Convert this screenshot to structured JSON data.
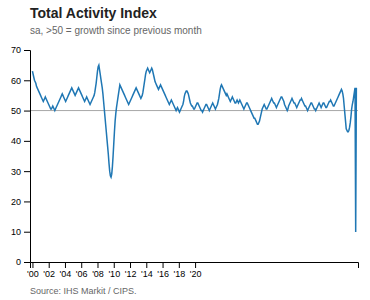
{
  "chart_data": {
    "type": "line",
    "title": "Total Activity Index",
    "subtitle": "sa, >50 = growth since previous month",
    "source": "Source: IHS Markit / CIPS.",
    "reference_line_y": 50,
    "grid": false,
    "xlim": [
      1999.7,
      2040.0333333333333
    ],
    "xticks": [
      {
        "value": 2000,
        "label": "'00"
      },
      {
        "value": 2002,
        "label": "'02"
      },
      {
        "value": 2004,
        "label": "'04"
      },
      {
        "value": 2006,
        "label": "'06"
      },
      {
        "value": 2008,
        "label": "'08"
      },
      {
        "value": 2010,
        "label": "'10"
      },
      {
        "value": 2012,
        "label": "'12"
      },
      {
        "value": 2014,
        "label": "'14"
      },
      {
        "value": 2016,
        "label": "'16"
      },
      {
        "value": 2018,
        "label": "'18"
      },
      {
        "value": 2020,
        "label": "'20"
      }
    ],
    "ylim": [
      0,
      70
    ],
    "yticks": [
      0,
      10,
      20,
      30,
      40,
      50,
      60,
      70
    ],
    "x": [
      2000,
      2000.0833333333333,
      2000.1666666666667,
      2000.25,
      2000.3333333333333,
      2000.4166666666667,
      2000.5,
      2000.5833333333333,
      2000.6666666666667,
      2000.75,
      2000.8333333333333,
      2000.9166666666667,
      2001,
      2001.0833333333333,
      2001.1666666666667,
      2001.25,
      2001.3333333333333,
      2001.4166666666667,
      2001.5,
      2001.5833333333333,
      2001.6666666666667,
      2001.75,
      2001.8333333333333,
      2001.9166666666667,
      2002,
      2002.0833333333333,
      2002.1666666666667,
      2002.25,
      2002.3333333333333,
      2002.4166666666667,
      2002.5,
      2002.5833333333333,
      2002.6666666666667,
      2002.75,
      2002.8333333333333,
      2002.9166666666667,
      2003,
      2003.0833333333333,
      2003.1666666666667,
      2003.25,
      2003.3333333333333,
      2003.4166666666667,
      2003.5,
      2003.5833333333333,
      2003.6666666666667,
      2003.75,
      2003.8333333333333,
      2003.9166666666667,
      2004,
      2004.0833333333333,
      2004.1666666666667,
      2004.25,
      2004.3333333333333,
      2004.4166666666667,
      2004.5,
      2004.5833333333333,
      2004.6666666666667,
      2004.75,
      2004.8333333333333,
      2004.9166666666667,
      2005,
      2005.0833333333333,
      2005.1666666666667,
      2005.25,
      2005.3333333333333,
      2005.4166666666667,
      2005.5,
      2005.5833333333333,
      2005.6666666666667,
      2005.75,
      2005.8333333333333,
      2005.9166666666667,
      2006,
      2006.0833333333333,
      2006.1666666666667,
      2006.25,
      2006.3333333333333,
      2006.4166666666667,
      2006.5,
      2006.5833333333333,
      2006.6666666666667,
      2006.75,
      2006.8333333333333,
      2006.9166666666667,
      2007,
      2007.0833333333333,
      2007.1666666666667,
      2007.25,
      2007.3333333333333,
      2007.4166666666667,
      2007.5,
      2007.5833333333333,
      2007.6666666666667,
      2007.75,
      2007.8333333333333,
      2007.9166666666667,
      2008,
      2008.0833333333333,
      2008.1666666666667,
      2008.25,
      2008.3333333333333,
      2008.4166666666667,
      2008.5,
      2008.5833333333333,
      2008.6666666666667,
      2008.75,
      2008.8333333333333,
      2008.9166666666667,
      2009,
      2009.0833333333333,
      2009.1666666666667,
      2009.25,
      2009.3333333333333,
      2009.4166666666667,
      2009.5,
      2009.5833333333333,
      2009.6666666666667,
      2009.75,
      2009.8333333333333,
      2009.9166666666667,
      2010,
      2010.0833333333333,
      2010.1666666666667,
      2010.25,
      2010.3333333333333,
      2010.4166666666667,
      2010.5,
      2010.5833333333333,
      2010.6666666666667,
      2010.75,
      2010.8333333333333,
      2010.9166666666667,
      2011,
      2011.0833333333333,
      2011.1666666666667,
      2011.25,
      2011.3333333333333,
      2011.4166666666667,
      2011.5,
      2011.5833333333333,
      2011.6666666666667,
      2011.75,
      2011.8333333333333,
      2011.9166666666667,
      2012,
      2012.0833333333333,
      2012.1666666666667,
      2012.25,
      2012.3333333333333,
      2012.4166666666667,
      2012.5,
      2012.5833333333333,
      2012.6666666666667,
      2012.75,
      2012.8333333333333,
      2012.9166666666667,
      2013,
      2013.0833333333333,
      2013.1666666666667,
      2013.25,
      2013.3333333333333,
      2013.4166666666667,
      2013.5,
      2013.5833333333333,
      2013.6666666666667,
      2013.75,
      2013.8333333333333,
      2013.9166666666667,
      2014,
      2014.0833333333333,
      2014.1666666666667,
      2014.25,
      2014.3333333333333,
      2014.4166666666667,
      2014.5,
      2014.5833333333333,
      2014.6666666666667,
      2014.75,
      2014.8333333333333,
      2014.9166666666667,
      2015,
      2015.0833333333333,
      2015.1666666666667,
      2015.25,
      2015.3333333333333,
      2015.4166666666667,
      2015.5,
      2015.5833333333333,
      2015.6666666666667,
      2015.75,
      2015.8333333333333,
      2015.9166666666667,
      2016,
      2016.0833333333333,
      2016.1666666666667,
      2016.25,
      2016.3333333333333,
      2016.4166666666667,
      2016.5,
      2016.5833333333333,
      2016.6666666666667,
      2016.75,
      2016.8333333333333,
      2016.9166666666667,
      2017,
      2017.0833333333333,
      2017.1666666666667,
      2017.25,
      2017.3333333333333,
      2017.4166666666667,
      2017.5,
      2017.5833333333333,
      2017.6666666666667,
      2017.75,
      2017.8333333333333,
      2017.9166666666667,
      2018,
      2018.0833333333333,
      2018.1666666666667,
      2018.25,
      2018.3333333333333,
      2018.4166666666667,
      2018.5,
      2018.5833333333333,
      2018.6666666666667,
      2018.75,
      2018.8333333333333,
      2018.9166666666667,
      2019,
      2019.0833333333333,
      2019.1666666666667,
      2019.25,
      2019.3333333333333,
      2019.4166666666667,
      2019.5,
      2019.5833333333333,
      2019.6666666666667,
      2019.75,
      2019.8333333333333,
      2019.9166666666667,
      2020,
      2020.0833333333333,
      2020.1666666666667,
      2020.25,
      2020.3333333333333,
      2020.4166666666667,
      2020.5,
      2020.5833333333333,
      2020.6666666666667,
      2020.75,
      2020.8333333333333,
      2020.9166666666667,
      2021,
      2021.0833333333333,
      2021.1666666666667,
      2021.25,
      2021.3333333333333,
      2021.4166666666667,
      2021.5,
      2021.5833333333333,
      2021.6666666666667,
      2021.75,
      2021.8333333333333,
      2021.9166666666667,
      2022,
      2022.0833333333333,
      2022.1666666666667,
      2022.25,
      2022.3333333333333,
      2022.4166666666667,
      2022.5,
      2022.5833333333333,
      2022.6666666666667,
      2022.75,
      2022.8333333333333,
      2022.9166666666667,
      2023,
      2023.0833333333333,
      2023.1666666666667,
      2023.25,
      2023.3333333333333,
      2023.4166666666667,
      2023.5,
      2023.5833333333333,
      2023.6666666666667,
      2023.75,
      2023.8333333333333,
      2023.9166666666667,
      2024,
      2024.0833333333333,
      2024.1666666666667,
      2024.25,
      2024.3333333333333,
      2024.4166666666667,
      2024.5,
      2024.5833333333333,
      2024.6666666666667,
      2024.75,
      2024.8333333333333,
      2024.9166666666667,
      2025,
      2025.0833333333333,
      2025.1666666666667,
      2025.25,
      2025.3333333333333,
      2025.4166666666667,
      2025.5,
      2025.5833333333333,
      2025.6666666666667,
      2025.75,
      2025.8333333333333,
      2025.9166666666667,
      2026,
      2026.0833333333333,
      2026.1666666666667,
      2026.25,
      2026.3333333333333,
      2026.4166666666667,
      2026.5,
      2026.5833333333333,
      2026.6666666666667,
      2026.75,
      2026.8333333333333,
      2026.9166666666667,
      2027,
      2027.0833333333333,
      2027.1666666666667,
      2027.25,
      2027.3333333333333,
      2027.4166666666667,
      2027.5,
      2027.5833333333333,
      2027.6666666666667,
      2027.75,
      2027.8333333333333,
      2027.9166666666667,
      2028,
      2028.0833333333333,
      2028.1666666666667,
      2028.25,
      2028.3333333333333,
      2028.4166666666667,
      2028.5,
      2028.5833333333333,
      2028.6666666666667,
      2028.75,
      2028.8333333333333,
      2028.9166666666667,
      2029,
      2029.0833333333333,
      2029.1666666666667,
      2029.25,
      2029.3333333333333,
      2029.4166666666667,
      2029.5,
      2029.5833333333333,
      2029.6666666666667,
      2029.75,
      2029.8333333333333,
      2029.9166666666667,
      2030,
      2030.0833333333333,
      2030.1666666666667,
      2030.25,
      2030.3333333333333,
      2030.4166666666667,
      2030.5,
      2030.5833333333333,
      2030.6666666666667,
      2030.75,
      2030.8333333333333,
      2030.9166666666667,
      2031,
      2031.0833333333333,
      2031.1666666666667,
      2031.25,
      2031.3333333333333,
      2031.4166666666667,
      2031.5,
      2031.5833333333333,
      2031.6666666666667,
      2031.75,
      2031.8333333333333,
      2031.9166666666667,
      2032,
      2032.0833333333333,
      2032.1666666666667,
      2032.25,
      2032.3333333333333,
      2032.4166666666667,
      2032.5,
      2032.5833333333333,
      2032.6666666666667,
      2032.75,
      2032.8333333333333,
      2032.9166666666667,
      2033,
      2033.0833333333333,
      2033.1666666666667,
      2033.25,
      2033.3333333333333,
      2033.4166666666667,
      2033.5,
      2033.5833333333333,
      2033.6666666666667,
      2033.75,
      2033.8333333333333,
      2033.9166666666667,
      2034,
      2034.0833333333333,
      2034.1666666666667,
      2034.25,
      2034.3333333333333,
      2034.4166666666667,
      2034.5,
      2034.5833333333333,
      2034.6666666666667,
      2034.75,
      2034.8333333333333,
      2034.9166666666667,
      2035,
      2035.0833333333333,
      2035.1666666666667,
      2035.25,
      2035.3333333333333,
      2035.4166666666667,
      2035.5,
      2035.5833333333333,
      2035.6666666666667,
      2035.75,
      2035.8333333333333,
      2035.9166666666667,
      2036,
      2036.0833333333333,
      2036.1666666666667,
      2036.25,
      2036.3333333333333,
      2036.4166666666667,
      2036.5,
      2036.5833333333333,
      2036.6666666666667,
      2036.75,
      2036.8333333333333,
      2036.9166666666667,
      2037,
      2037.0833333333333,
      2037.1666666666667,
      2037.25,
      2037.3333333333333,
      2037.4166666666667,
      2037.5,
      2037.5833333333333,
      2037.6666666666667,
      2037.75,
      2037.8333333333333,
      2037.9166666666667,
      2038,
      2038.0833333333333,
      2038.1666666666667,
      2038.25,
      2038.3333333333333,
      2038.4166666666667,
      2038.5,
      2038.5833333333333,
      2038.6666666666667,
      2038.75,
      2038.8333333333333,
      2038.9166666666667,
      2039,
      2039.0833333333333,
      2039.1666666666667,
      2039.25,
      2039.3333333333333,
      2039.4166666666667,
      2039.5,
      2039.5833333333333,
      2039.6666666666667,
      2039.75,
      2039.8333333333333
    ],
    "values": [
      63.0,
      62.0,
      61.0,
      60.0,
      59.5,
      59.0,
      58.0,
      57.5,
      57.0,
      56.5,
      56.0,
      55.5,
      55.0,
      54.5,
      54.0,
      53.5,
      53.0,
      53.5,
      54.0,
      54.5,
      54.0,
      53.5,
      53.0,
      52.5,
      52.0,
      51.5,
      51.0,
      50.5,
      50.5,
      51.0,
      51.5,
      51.0,
      50.5,
      50.0,
      50.5,
      51.0,
      51.5,
      52.0,
      52.5,
      53.0,
      53.5,
      54.0,
      54.5,
      55.0,
      55.5,
      55.0,
      54.5,
      54.0,
      53.5,
      53.0,
      53.5,
      54.0,
      54.5,
      55.0,
      55.5,
      56.0,
      56.5,
      57.0,
      57.5,
      57.0,
      56.5,
      56.0,
      55.5,
      55.0,
      55.5,
      56.0,
      56.5,
      57.0,
      57.5,
      57.0,
      56.5,
      56.0,
      55.5,
      55.0,
      54.5,
      54.0,
      53.5,
      53.0,
      53.5,
      54.0,
      54.5,
      54.0,
      53.5,
      53.0,
      52.5,
      52.0,
      52.5,
      53.0,
      53.5,
      54.0,
      54.5,
      55.0,
      56.0,
      57.5,
      59.0,
      61.0,
      63.0,
      64.5,
      65.0,
      63.5,
      62.0,
      60.5,
      59.0,
      57.5,
      55.5,
      53.0,
      50.5,
      48.0,
      45.5,
      43.0,
      40.5,
      38.0,
      35.5,
      32.5,
      30.0,
      28.5,
      28.0,
      29.0,
      31.5,
      35.0,
      39.0,
      43.0,
      46.5,
      49.0,
      51.0,
      52.5,
      54.0,
      55.5,
      57.0,
      58.5,
      58.0,
      57.5,
      57.0,
      56.5,
      56.0,
      55.5,
      55.0,
      54.5,
      54.0,
      53.5,
      53.0,
      52.5,
      52.0,
      52.5,
      53.0,
      53.5,
      54.0,
      54.5,
      55.0,
      55.5,
      56.0,
      56.5,
      57.0,
      57.5,
      57.0,
      56.5,
      56.0,
      55.5,
      55.0,
      54.5,
      54.0,
      54.5,
      55.0,
      56.0,
      57.5,
      59.0,
      60.5,
      62.0,
      63.0,
      63.5,
      64.0,
      63.5,
      63.0,
      62.5,
      63.0,
      63.5,
      64.0,
      63.5,
      62.5,
      61.5,
      60.5,
      59.5,
      59.0,
      58.5,
      58.0,
      57.5,
      57.0,
      57.5,
      58.0,
      58.5,
      58.0,
      57.5,
      57.0,
      56.5,
      56.0,
      55.5,
      55.0,
      54.5,
      54.0,
      53.5,
      53.0,
      52.5,
      52.0,
      52.5,
      53.0,
      53.5,
      53.0,
      52.5,
      52.0,
      51.5,
      51.0,
      50.5,
      50.0,
      50.5,
      51.0,
      50.5,
      50.0,
      49.5,
      50.0,
      50.5,
      51.0,
      51.5,
      52.0,
      53.0,
      54.5,
      55.5,
      56.0,
      56.5,
      56.5,
      56.0,
      55.5,
      54.5,
      53.5,
      52.5,
      52.0,
      51.5,
      51.5,
      51.0,
      50.5,
      50.5,
      51.0,
      51.5,
      52.0,
      52.5,
      52.5,
      52.0,
      51.5,
      51.0,
      50.5,
      50.0,
      50.0,
      49.5,
      50.0,
      50.5,
      51.0,
      51.5,
      52.0,
      52.0,
      51.5,
      51.0,
      50.5,
      50.0,
      50.5,
      51.0,
      51.5,
      52.0,
      52.5,
      52.0,
      51.5,
      51.0,
      50.5,
      51.0,
      51.5,
      52.0,
      53.0,
      54.0,
      55.5,
      57.0,
      58.0,
      58.5,
      58.0,
      57.5,
      57.0,
      56.5,
      56.0,
      55.5,
      55.0,
      55.5,
      55.0,
      54.5,
      54.0,
      53.5,
      53.0,
      53.5,
      54.0,
      54.5,
      54.0,
      53.5,
      53.0,
      52.5,
      52.5,
      53.0,
      53.5,
      53.0,
      52.5,
      53.0,
      53.5,
      53.0,
      52.5,
      52.0,
      51.5,
      51.0,
      50.5,
      51.0,
      51.5,
      52.0,
      52.5,
      52.5,
      52.0,
      51.5,
      51.0,
      50.5,
      50.0,
      49.5,
      49.0,
      48.5,
      48.0,
      47.5,
      47.5,
      47.0,
      46.5,
      46.0,
      45.5,
      45.5,
      46.0,
      46.5,
      47.5,
      48.5,
      49.5,
      50.5,
      51.0,
      51.5,
      52.0,
      51.5,
      51.0,
      50.5,
      50.5,
      51.0,
      51.5,
      52.0,
      52.5,
      53.0,
      53.5,
      54.0,
      53.5,
      53.0,
      52.5,
      52.5,
      52.0,
      51.5,
      51.0,
      51.5,
      52.0,
      52.5,
      53.0,
      53.5,
      54.0,
      54.5,
      54.5,
      54.0,
      53.5,
      53.0,
      52.0,
      51.5,
      51.0,
      50.5,
      50.0,
      50.5,
      51.5,
      52.0,
      52.5,
      53.0,
      53.5,
      54.0,
      53.5,
      53.0,
      52.5,
      52.5,
      52.0,
      51.5,
      51.0,
      51.5,
      52.0,
      52.5,
      53.0,
      53.5,
      53.5,
      54.0,
      53.5,
      53.0,
      52.5,
      52.0,
      51.5,
      51.5,
      51.0,
      50.5,
      50.0,
      50.5,
      51.0,
      51.5,
      52.0,
      52.5,
      52.5,
      52.0,
      51.5,
      51.0,
      50.5,
      50.5,
      50.0,
      50.5,
      51.0,
      51.5,
      52.0,
      52.5,
      52.0,
      51.5,
      51.0,
      51.5,
      52.0,
      52.5,
      52.5,
      52.0,
      51.5,
      51.0,
      51.0,
      51.5,
      52.0,
      52.5,
      53.0,
      53.0,
      53.5,
      53.0,
      52.5,
      52.0,
      51.5,
      51.5,
      52.0,
      52.5,
      53.0,
      53.5,
      54.0,
      54.5,
      55.0,
      55.5,
      56.0,
      56.5,
      57.0,
      56.5,
      55.5,
      54.0,
      51.5,
      49.0,
      46.5,
      44.0,
      43.5,
      43.0,
      43.0,
      43.5,
      44.5,
      46.0,
      48.0,
      50.5,
      52.0,
      53.0,
      54.5,
      56.0,
      57.5,
      9.9,
      57.5
    ]
  }
}
